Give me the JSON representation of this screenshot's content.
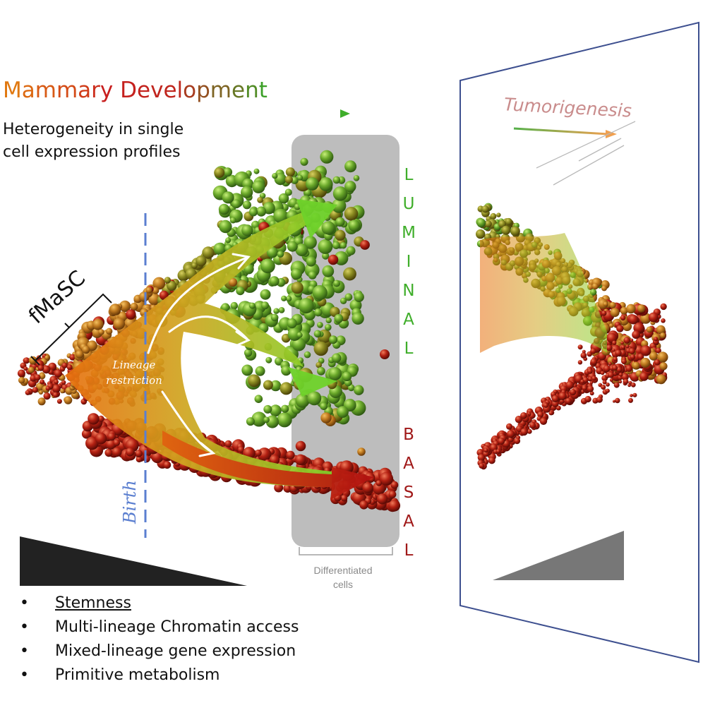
{
  "header": {
    "title": "Mammary Development",
    "subtitle_line1": "Heterogeneity in single",
    "subtitle_line2": "cell expression profiles"
  },
  "lineages": {
    "luminal": [
      "L",
      "U",
      "M",
      "I",
      "N",
      "A",
      "L"
    ],
    "basal": [
      "B",
      "A",
      "S",
      "A",
      "L"
    ]
  },
  "labels": {
    "fmasc": "fMaSC",
    "lineage_restriction_line1": "Lineage",
    "lineage_restriction_line2": "restriction",
    "birth": "Birth",
    "differentiated_line1": "Differentiated",
    "differentiated_line2": "cells",
    "tumorigenesis": "Tumorigenesis"
  },
  "bullets": [
    {
      "text": "Stemness",
      "underline": true
    },
    {
      "text": "Multi-lineage Chromatin access",
      "underline": false
    },
    {
      "text": "Mixed-lineage gene expression",
      "underline": false
    },
    {
      "text": "Primitive metabolism",
      "underline": false
    }
  ],
  "colors": {
    "luminal_green": "#3fae2a",
    "basal_red": "#a01818",
    "stem_orange": "#e27a10",
    "birth_blue": "#5b7fd0",
    "panel_border": "#3d4f8f",
    "gray_box": "#bdbdbd"
  },
  "bullet_glyph": "•"
}
